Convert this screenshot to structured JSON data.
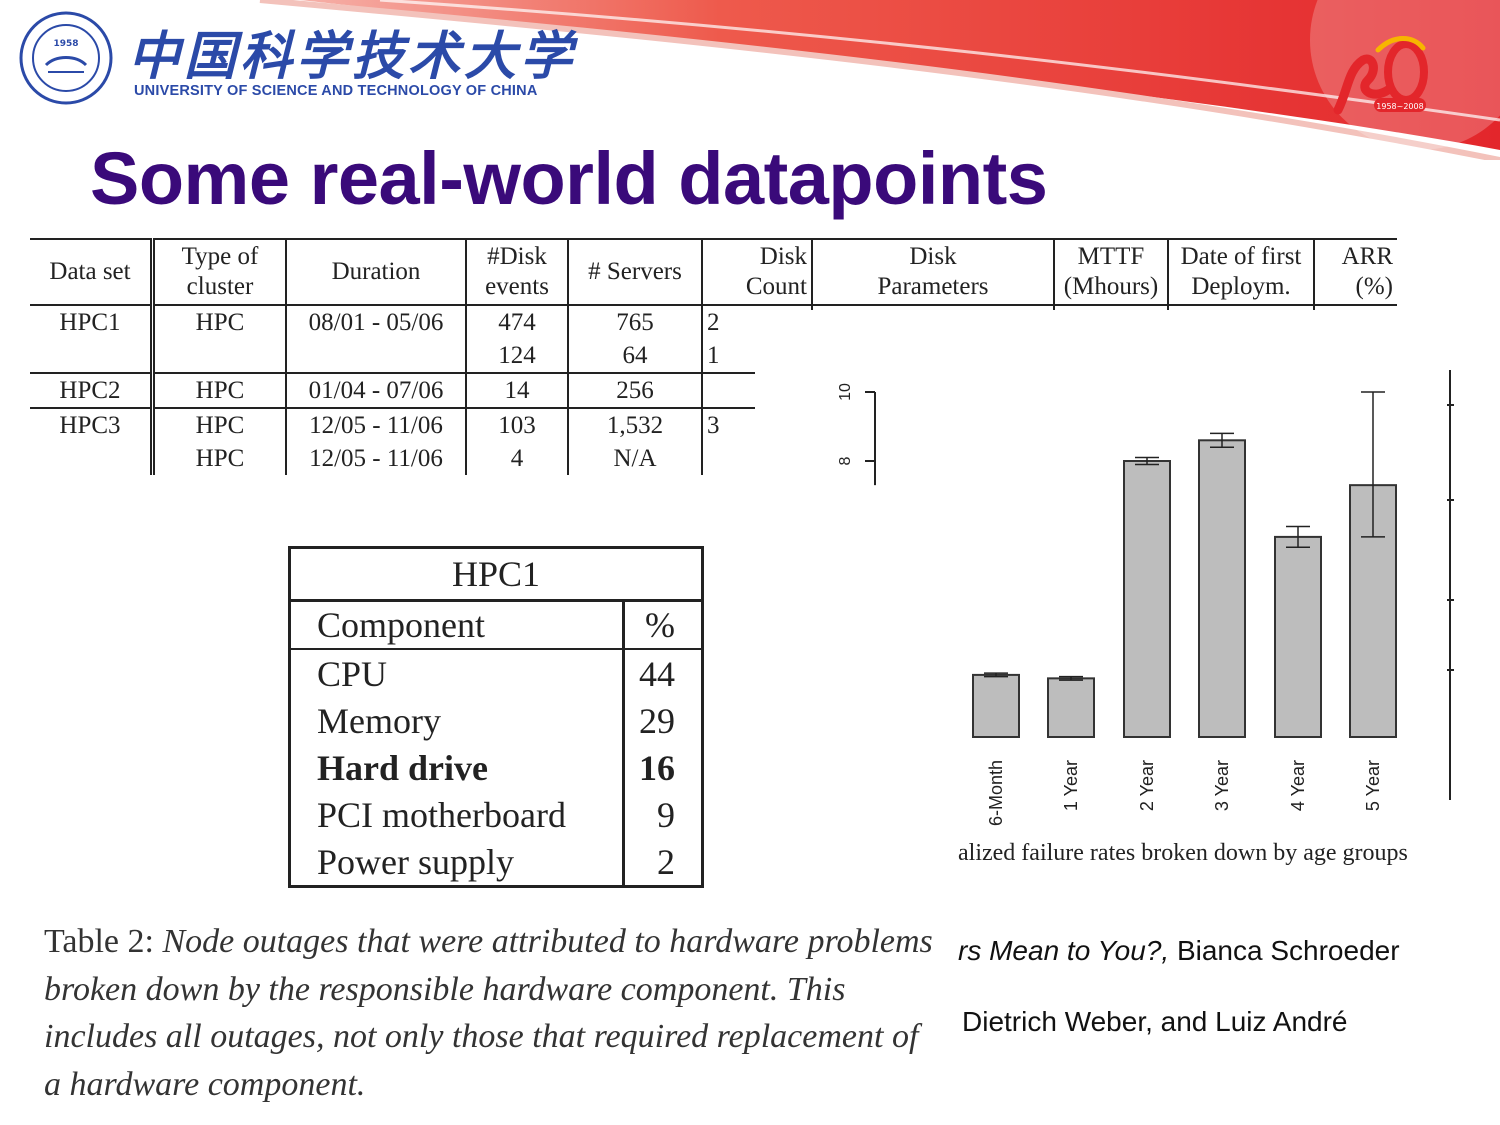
{
  "header": {
    "university_cn": "中国科学技术大学",
    "university_en": "UNIVERSITY OF SCIENCE AND TECHNOLOGY OF CHINA",
    "seal_year": "1958",
    "anniversary_years": "1958~2008",
    "brand_colors": {
      "blue": "#2b4aa8",
      "red": "#e32a2a",
      "title_purple": "#3a0a7a"
    }
  },
  "slide": {
    "title": "Some real-world datapoints"
  },
  "data_table": {
    "headers": [
      [
        "Data set"
      ],
      [
        "Type of",
        "cluster"
      ],
      [
        "Duration"
      ],
      [
        "#Disk",
        "events"
      ],
      [
        "# Servers"
      ],
      [
        "Disk",
        "Count"
      ],
      [
        "Disk",
        "Parameters"
      ],
      [
        "MTTF",
        "(Mhours)"
      ],
      [
        "Date of first",
        "Deploym."
      ],
      [
        "ARR",
        "(%)"
      ]
    ],
    "rows": [
      [
        "HPC1",
        "HPC",
        "08/01 - 05/06",
        "474",
        "765",
        "2",
        "",
        "",
        "",
        ""
      ],
      [
        "",
        "",
        "",
        "124",
        "64",
        "1",
        "",
        "",
        "",
        ""
      ],
      [
        "HPC2",
        "HPC",
        "01/04 - 07/06",
        "14",
        "256",
        "",
        "",
        "",
        "",
        ""
      ],
      [
        "HPC3",
        "HPC",
        "12/05 - 11/06",
        "103",
        "1,532",
        "3",
        "",
        "",
        "",
        ""
      ],
      [
        "",
        "HPC",
        "12/05 - 11/06",
        "4",
        "N/A",
        "",
        "",
        "",
        "",
        ""
      ]
    ]
  },
  "hpc1_table": {
    "title": "HPC1",
    "col_component": "Component",
    "col_pct": "%",
    "rows": [
      {
        "component": "CPU",
        "pct": "44"
      },
      {
        "component": "Memory",
        "pct": "29"
      },
      {
        "component": "Hard drive",
        "pct": "16"
      },
      {
        "component": "PCI motherboard",
        "pct": "9"
      },
      {
        "component": "Power supply",
        "pct": "2"
      }
    ]
  },
  "table2_caption": {
    "label": "Table 2:",
    "text": "Node outages that were attributed to hardware problems broken down by the responsible hardware component. This includes all outages, not only those that required replacement of a hardware component."
  },
  "chart_data": {
    "type": "bar",
    "categories": [
      "6-Month",
      "1 Year",
      "2 Year",
      "3 Year",
      "4 Year",
      "5 Year"
    ],
    "values": [
      1.8,
      1.7,
      8.0,
      8.6,
      5.8,
      7.3
    ],
    "error_low": [
      1.75,
      1.65,
      7.9,
      8.4,
      5.5,
      5.8
    ],
    "error_high": [
      1.85,
      1.75,
      8.1,
      8.8,
      6.1,
      10.0
    ],
    "y_tick_labels": [
      "8",
      "10"
    ],
    "ylim": [
      0,
      11
    ],
    "title": "",
    "xlabel": "",
    "ylabel": "",
    "caption": "alized failure rates broken down by age groups",
    "bar_color": "#bdbdbd",
    "grid": false
  },
  "reference": {
    "line1_italic": "rs Mean to You?,",
    "line1_rest": " Bianca Schroeder",
    "line2": "Dietrich Weber, and Luiz André"
  }
}
